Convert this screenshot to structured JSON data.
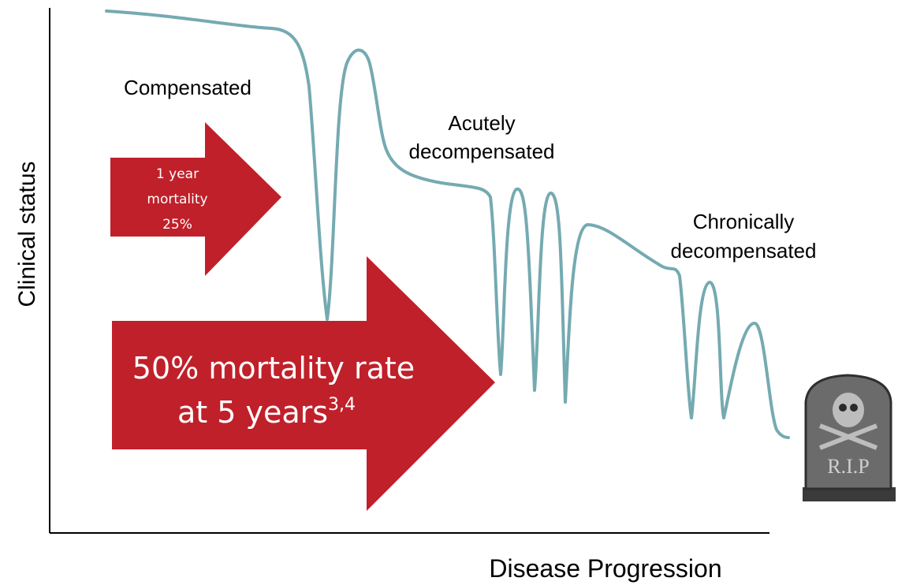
{
  "y_axis_label": "Clinical status",
  "x_axis_label": "Disease Progression",
  "stages": [
    {
      "lines": [
        "Compensated"
      ]
    },
    {
      "lines": [
        "Acutely",
        "decompensated"
      ]
    },
    {
      "lines": [
        "Chronically",
        "decompensated"
      ]
    }
  ],
  "small_arrow": {
    "lines": [
      "1 year",
      "mortality",
      "25%"
    ]
  },
  "big_arrow": {
    "line1": "50% mortality rate",
    "line2": "at  5 years",
    "superscript": "3,4"
  },
  "tombstone": {
    "label": "R.I.P"
  }
}
